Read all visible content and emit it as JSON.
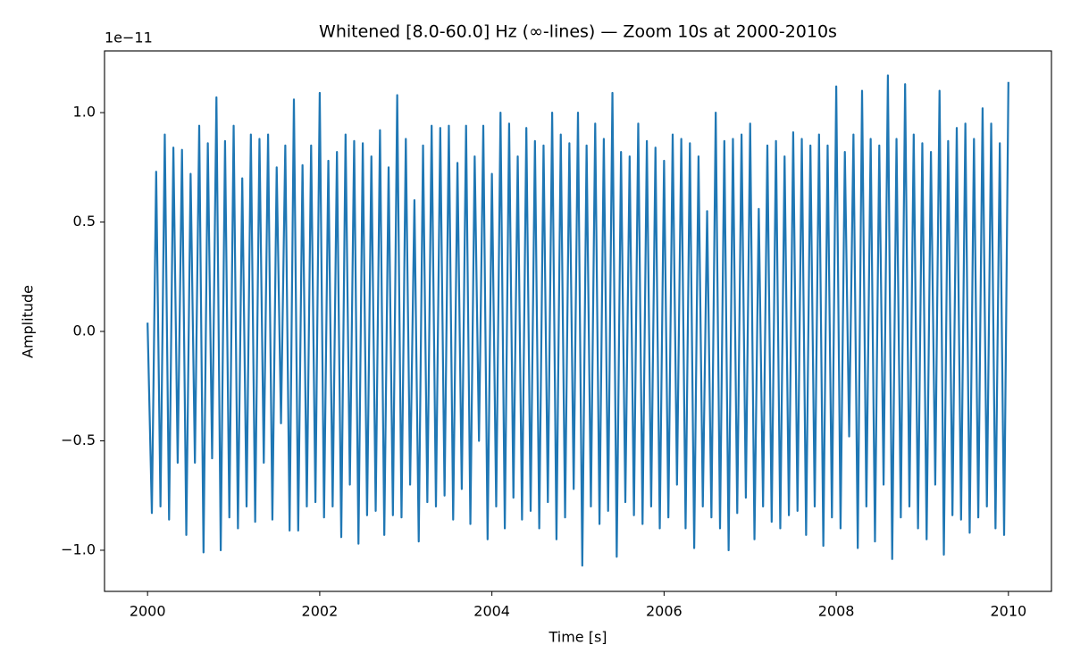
{
  "chart_data": {
    "type": "line",
    "title": "Whitened [8.0-60.0] Hz (∞-lines) — Zoom 10s at 2000-2010s",
    "xlabel": "Time [s]",
    "ylabel": "Amplitude",
    "y_offset_label": "1e−11",
    "color": "#1f77b4",
    "xlim": [
      1999.5,
      2010.5
    ],
    "ylim": [
      -1.188,
      1.282
    ],
    "xticks": [
      2000,
      2002,
      2004,
      2006,
      2008,
      2010
    ],
    "yticks": [
      {
        "value": -1.0,
        "label": "−1.0"
      },
      {
        "value": -0.5,
        "label": "−0.5"
      },
      {
        "value": 0.0,
        "label": "0.0"
      },
      0.5,
      {
        "value": 1.0,
        "label": "1.0"
      }
    ],
    "x": [
      2000,
      2000.05,
      2000.1,
      2000.15,
      2000.2,
      2000.25,
      2000.3,
      2000.35,
      2000.4,
      2000.45,
      2000.5,
      2000.55,
      2000.6,
      2000.65,
      2000.7,
      2000.75,
      2000.8,
      2000.85,
      2000.9,
      2000.95,
      2001,
      2001.05,
      2001.1,
      2001.15,
      2001.2,
      2001.25,
      2001.3,
      2001.35,
      2001.4,
      2001.45,
      2001.5,
      2001.55,
      2001.6,
      2001.65,
      2001.7,
      2001.75,
      2001.8,
      2001.85,
      2001.9,
      2001.95,
      2002,
      2002.05,
      2002.1,
      2002.15,
      2002.2,
      2002.25,
      2002.3,
      2002.35,
      2002.4,
      2002.45,
      2002.5,
      2002.55,
      2002.6,
      2002.65,
      2002.7,
      2002.75,
      2002.8,
      2002.85,
      2002.9,
      2002.95,
      2003,
      2003.05,
      2003.1,
      2003.15,
      2003.2,
      2003.25,
      2003.3,
      2003.35,
      2003.4,
      2003.45,
      2003.5,
      2003.55,
      2003.6,
      2003.65,
      2003.7,
      2003.75,
      2003.8,
      2003.85,
      2003.9,
      2003.95,
      2004,
      2004.05,
      2004.1,
      2004.15,
      2004.2,
      2004.25,
      2004.3,
      2004.35,
      2004.4,
      2004.45,
      2004.5,
      2004.55,
      2004.6,
      2004.65,
      2004.7,
      2004.75,
      2004.8,
      2004.85,
      2004.9,
      2004.95,
      2005,
      2005.05,
      2005.1,
      2005.15,
      2005.2,
      2005.25,
      2005.3,
      2005.35,
      2005.4,
      2005.45,
      2005.5,
      2005.55,
      2005.6,
      2005.65,
      2005.7,
      2005.75,
      2005.8,
      2005.85,
      2005.9,
      2005.95,
      2006,
      2006.05,
      2006.1,
      2006.15,
      2006.2,
      2006.25,
      2006.3,
      2006.35,
      2006.4,
      2006.45,
      2006.5,
      2006.55,
      2006.6,
      2006.65,
      2006.7,
      2006.75,
      2006.8,
      2006.85,
      2006.9,
      2006.95,
      2007,
      2007.05,
      2007.1,
      2007.15,
      2007.2,
      2007.25,
      2007.3,
      2007.35,
      2007.4,
      2007.45,
      2007.5,
      2007.55,
      2007.6,
      2007.65,
      2007.7,
      2007.75,
      2007.8,
      2007.85,
      2007.9,
      2007.95,
      2008,
      2008.05,
      2008.1,
      2008.15,
      2008.2,
      2008.25,
      2008.3,
      2008.35,
      2008.4,
      2008.45,
      2008.5,
      2008.55,
      2008.6,
      2008.65,
      2008.7,
      2008.75,
      2008.8,
      2008.85,
      2008.9,
      2008.95,
      2009,
      2009.05,
      2009.1,
      2009.15,
      2009.2,
      2009.25,
      2009.3,
      2009.35,
      2009.4,
      2009.45,
      2009.5,
      2009.55,
      2009.6,
      2009.65,
      2009.7,
      2009.75,
      2009.8,
      2009.85,
      2009.9,
      2009.95,
      2010
    ],
    "values": [
      0.04,
      -0.83,
      0.73,
      -0.8,
      0.9,
      -0.86,
      0.84,
      -0.6,
      0.83,
      -0.93,
      0.72,
      -0.6,
      0.94,
      -1.01,
      0.86,
      -0.58,
      1.07,
      -1.0,
      0.87,
      -0.85,
      0.94,
      -0.9,
      0.7,
      -0.8,
      0.9,
      -0.87,
      0.88,
      -0.6,
      0.9,
      -0.86,
      0.75,
      -0.42,
      0.85,
      -0.91,
      1.06,
      -0.91,
      0.76,
      -0.8,
      0.85,
      -0.78,
      1.09,
      -0.85,
      0.78,
      -0.8,
      0.82,
      -0.94,
      0.9,
      -0.7,
      0.87,
      -0.97,
      0.86,
      -0.84,
      0.8,
      -0.82,
      0.92,
      -0.93,
      0.75,
      -0.84,
      1.08,
      -0.85,
      0.88,
      -0.7,
      0.6,
      -0.96,
      0.85,
      -0.78,
      0.94,
      -0.8,
      0.93,
      -0.75,
      0.94,
      -0.86,
      0.77,
      -0.72,
      0.94,
      -0.88,
      0.8,
      -0.5,
      0.94,
      -0.95,
      0.72,
      -0.8,
      1.0,
      -0.9,
      0.95,
      -0.76,
      0.8,
      -0.86,
      0.93,
      -0.82,
      0.87,
      -0.9,
      0.85,
      -0.78,
      1.0,
      -0.95,
      0.9,
      -0.85,
      0.86,
      -0.72,
      1.0,
      -1.07,
      0.85,
      -0.8,
      0.95,
      -0.88,
      0.88,
      -0.82,
      1.09,
      -1.03,
      0.82,
      -0.78,
      0.8,
      -0.84,
      0.95,
      -0.88,
      0.87,
      -0.8,
      0.84,
      -0.9,
      0.78,
      -0.85,
      0.9,
      -0.7,
      0.88,
      -0.9,
      0.86,
      -0.99,
      0.8,
      -0.8,
      0.55,
      -0.85,
      1.0,
      -0.9,
      0.87,
      -1.0,
      0.88,
      -0.83,
      0.9,
      -0.76,
      0.95,
      -0.95,
      0.56,
      -0.8,
      0.85,
      -0.87,
      0.87,
      -0.9,
      0.8,
      -0.84,
      0.91,
      -0.82,
      0.88,
      -0.93,
      0.85,
      -0.8,
      0.9,
      -0.98,
      0.85,
      -0.85,
      1.12,
      -0.9,
      0.82,
      -0.48,
      0.9,
      -0.99,
      1.1,
      -0.8,
      0.88,
      -0.96,
      0.85,
      -0.7,
      1.17,
      -1.04,
      0.88,
      -0.85,
      1.13,
      -0.8,
      0.9,
      -0.9,
      0.86,
      -0.95,
      0.82,
      -0.7,
      1.1,
      -1.02,
      0.87,
      -0.84,
      0.93,
      -0.86,
      0.95,
      -0.92,
      0.88,
      -0.85,
      1.02,
      -0.8,
      0.95,
      -0.9,
      0.86,
      -0.93,
      1.14
    ]
  }
}
